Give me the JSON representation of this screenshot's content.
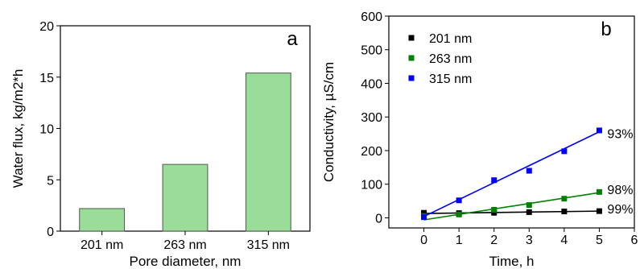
{
  "chart_data": [
    {
      "panel": "a",
      "type": "bar",
      "categories": [
        "201 nm",
        "263 nm",
        "315 nm"
      ],
      "values": [
        2.2,
        6.5,
        15.4
      ],
      "xlabel": "Pore diameter, nm",
      "ylabel": "Water flux, kg/m2*h",
      "ylim": [
        0,
        20
      ],
      "yticks": [
        "0",
        "5",
        "10",
        "15",
        "20"
      ],
      "bar_color": "#99dd99",
      "bar_edge": "#555555",
      "grid": false
    },
    {
      "panel": "b",
      "type": "scatter",
      "xlabel": "Time, h",
      "ylabel": "Conductivity, µS/cm",
      "xlim": [
        -1,
        6
      ],
      "ylim": [
        -30,
        600
      ],
      "xticks": [
        "0",
        "1",
        "2",
        "3",
        "4",
        "5",
        "6"
      ],
      "yticks": [
        "0",
        "100",
        "200",
        "300",
        "400",
        "500",
        "600"
      ],
      "legend_position": "top-left",
      "grid": false,
      "series": [
        {
          "name": "201 nm",
          "color": "#000000",
          "x": [
            0,
            1,
            2,
            3,
            4,
            5
          ],
          "y": [
            15,
            14,
            15,
            17,
            19,
            20
          ],
          "fit": [
            [
              0,
              13
            ],
            [
              5,
              20
            ]
          ],
          "retention_label": "99%"
        },
        {
          "name": "263 nm",
          "color": "#008000",
          "x": [
            0,
            1,
            2,
            3,
            4,
            5
          ],
          "y": [
            5,
            10,
            24,
            38,
            57,
            77
          ],
          "fit": [
            [
              0,
              -6
            ],
            [
              5,
              75
            ]
          ],
          "retention_label": "98%"
        },
        {
          "name": "315 nm",
          "color": "#0000ff",
          "x": [
            0,
            1,
            2,
            3,
            4,
            5
          ],
          "y": [
            2,
            52,
            112,
            140,
            198,
            260
          ],
          "fit": [
            [
              0,
              4
            ],
            [
              5,
              256
            ]
          ],
          "retention_label": "93%"
        }
      ]
    }
  ]
}
